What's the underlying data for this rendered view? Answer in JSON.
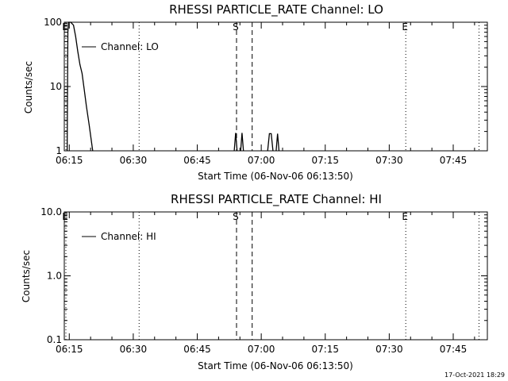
{
  "footer": {
    "timestamp": "17-Oct-2021 18:29"
  },
  "chart_data": [
    {
      "type": "line",
      "title": "RHESSI PARTICLE_RATE Channel: LO",
      "xlabel": "Start Time (06-Nov-06 06:13:50)",
      "ylabel": "Counts/sec",
      "yscale": "log",
      "xlim": [
        "06:13:50",
        "07:53:00"
      ],
      "ylim": [
        1,
        100
      ],
      "xticks": [
        "06:15",
        "06:30",
        "06:45",
        "07:00",
        "07:15",
        "07:30",
        "07:45"
      ],
      "yticks": [
        {
          "value": 1,
          "label": "1"
        },
        {
          "value": 10,
          "label": "10"
        },
        {
          "value": 100,
          "label": "100"
        }
      ],
      "legend": {
        "position": "top-left",
        "label": "Channel: LO"
      },
      "markers": [
        {
          "type": "dotted",
          "time": "06:13:50",
          "label": "E"
        },
        {
          "type": "dotted",
          "time": "06:31:00",
          "label": ""
        },
        {
          "type": "dashed",
          "time": "06:53:50",
          "label": "S"
        },
        {
          "type": "dashed",
          "time": "06:57:30",
          "label": ""
        },
        {
          "type": "dotted",
          "time": "07:33:30",
          "label": "E"
        },
        {
          "type": "dotted",
          "time": "07:50:40",
          "label": ""
        }
      ],
      "series": [
        {
          "name": "Channel: LO",
          "segments": [
            [
              [
                "06:14:30",
                1
              ],
              [
                "06:14:40",
                70
              ],
              [
                "06:14:50",
                100
              ],
              [
                "06:15:20",
                100
              ],
              [
                "06:16:00",
                90
              ],
              [
                "06:16:30",
                60
              ],
              [
                "06:17:00",
                35
              ],
              [
                "06:17:30",
                22
              ],
              [
                "06:18:00",
                16
              ],
              [
                "06:18:30",
                9
              ],
              [
                "06:19:00",
                5
              ],
              [
                "06:19:40",
                2.5
              ],
              [
                "06:20:30",
                1
              ]
            ],
            [
              [
                "06:53:40",
                1
              ],
              [
                "06:54:00",
                1.9
              ],
              [
                "06:54:20",
                1
              ]
            ],
            [
              [
                "06:55:10",
                1
              ],
              [
                "06:55:30",
                1.9
              ],
              [
                "06:55:50",
                1
              ]
            ],
            [
              [
                "07:01:30",
                1
              ],
              [
                "07:01:55",
                1.85
              ],
              [
                "07:02:20",
                1.85
              ],
              [
                "07:02:45",
                1
              ]
            ],
            [
              [
                "07:03:30",
                1
              ],
              [
                "07:03:50",
                1.85
              ],
              [
                "07:04:10",
                1
              ]
            ]
          ]
        }
      ]
    },
    {
      "type": "line",
      "title": "RHESSI PARTICLE_RATE Channel: HI",
      "xlabel": "Start Time (06-Nov-06 06:13:50)",
      "ylabel": "Counts/sec",
      "yscale": "log",
      "xlim": [
        "06:13:50",
        "07:53:00"
      ],
      "ylim": [
        0.1,
        10
      ],
      "xticks": [
        "06:15",
        "06:30",
        "06:45",
        "07:00",
        "07:15",
        "07:30",
        "07:45"
      ],
      "yticks": [
        {
          "value": 0.1,
          "label": "0.1"
        },
        {
          "value": 1,
          "label": "1.0"
        },
        {
          "value": 10,
          "label": "10.0"
        }
      ],
      "legend": {
        "position": "top-left",
        "label": "Channel: HI"
      },
      "markers": [
        {
          "type": "dotted",
          "time": "06:13:50",
          "label": "E"
        },
        {
          "type": "dotted",
          "time": "06:31:00",
          "label": ""
        },
        {
          "type": "dashed",
          "time": "06:53:50",
          "label": "S"
        },
        {
          "type": "dashed",
          "time": "06:57:30",
          "label": ""
        },
        {
          "type": "dotted",
          "time": "07:33:30",
          "label": "E"
        },
        {
          "type": "dotted",
          "time": "07:50:40",
          "label": ""
        }
      ],
      "series": [
        {
          "name": "Channel: HI",
          "segments": []
        }
      ]
    }
  ]
}
